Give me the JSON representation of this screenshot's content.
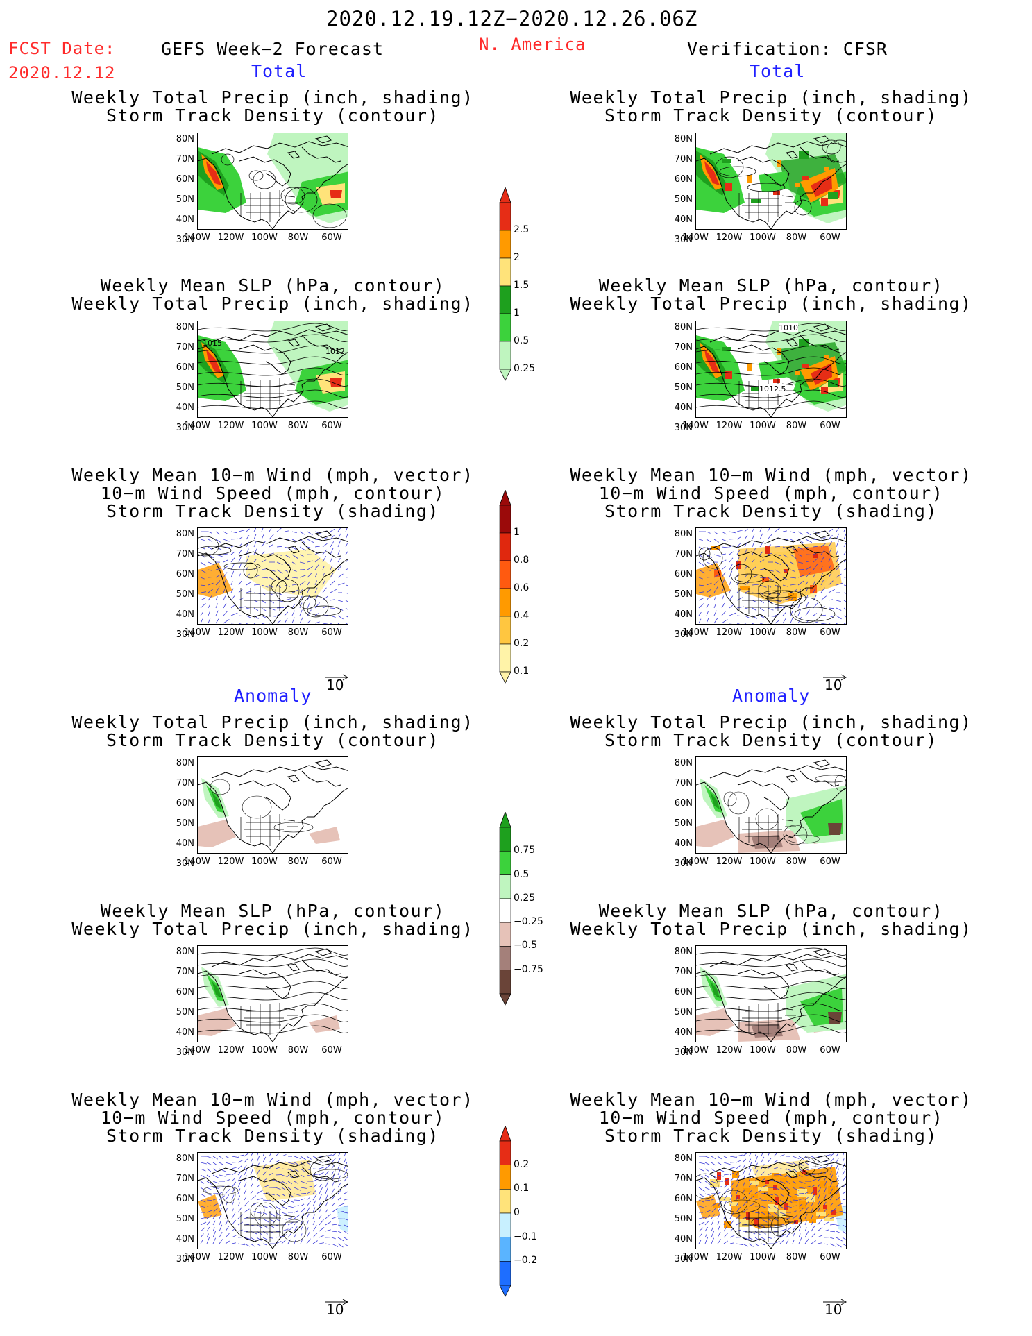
{
  "header": {
    "title": "2020.12.19.12Z−2020.12.26.06Z",
    "fcst_label": "FCST Date:",
    "fcst_date": "2020.12.12",
    "left_title": "GEFS Week−2 Forecast",
    "region": "N. America",
    "right_title": "Verification: CFSR"
  },
  "sections": {
    "total": "Total",
    "anomaly": "Anomaly"
  },
  "panel_titles": {
    "precip_storm": "Weekly Total Precip (inch, shading)\nStorm Track Density (contour)",
    "slp_precip": "Weekly Mean SLP (hPa, contour)\nWeekly Total Precip (inch, shading)",
    "wind_storm": "Weekly Mean 10−m Wind (mph, vector)\n10−m Wind Speed (mph, contour)\nStorm Track Density (shading)"
  },
  "axes": {
    "lat": [
      "80N",
      "70N",
      "60N",
      "50N",
      "40N",
      "30N"
    ],
    "lon": [
      "140W",
      "120W",
      "100W",
      "80W",
      "60W"
    ]
  },
  "vector_ref": "10",
  "colorbars": {
    "precip_total": {
      "labels": [
        "2.5",
        "2",
        "1.5",
        "1",
        "0.5",
        "0.25"
      ],
      "colors": [
        "#e62d16",
        "#ff9a00",
        "#ffe37a",
        "#1ea01e",
        "#3cd23c",
        "#bff5bf"
      ]
    },
    "storm_total": {
      "labels": [
        "1",
        "0.8",
        "0.6",
        "0.4",
        "0.2",
        "0.1"
      ],
      "colors": [
        "#9b0a0a",
        "#e0280e",
        "#ff5a10",
        "#ff9a00",
        "#ffc640",
        "#fff3a8"
      ]
    },
    "precip_anom": {
      "labels": [
        "0.75",
        "0.5",
        "0.25",
        "−0.25",
        "−0.5",
        "−0.75"
      ],
      "colors": [
        "#1ea01e",
        "#3cd23c",
        "#bff5bf",
        "#ffffff",
        "#e6c2b8",
        "#a4807a",
        "#6a4438"
      ]
    },
    "storm_anom": {
      "labels": [
        "0.2",
        "0.1",
        "0",
        "−0.1",
        "−0.2"
      ],
      "colors": [
        "#e62d16",
        "#ff9a00",
        "#ffe37a",
        "#c8f0ff",
        "#5ab4ff",
        "#1e6eff"
      ]
    }
  },
  "contour_labels": {
    "slp_fcst_a": "1015",
    "slp_fcst_b": "1012",
    "slp_cfsr_a": "1010",
    "slp_cfsr_b": "1012.5"
  }
}
